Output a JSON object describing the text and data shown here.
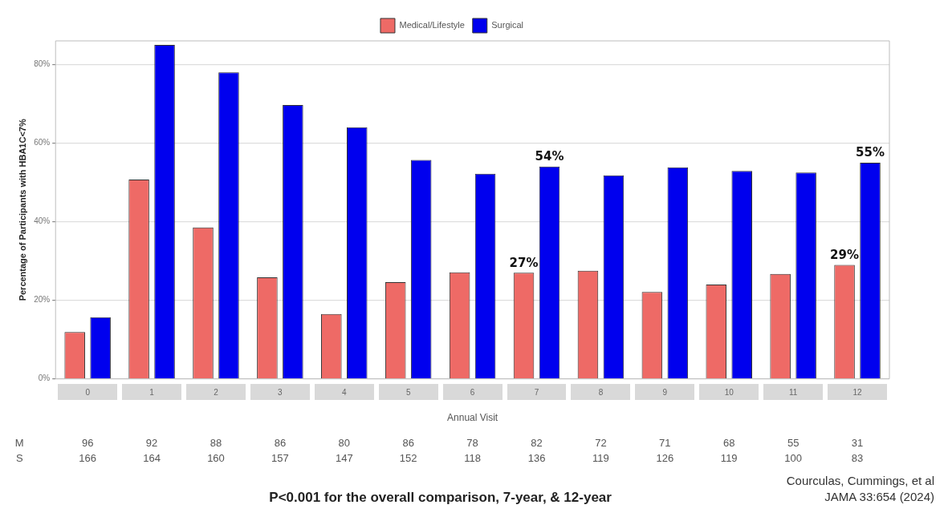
{
  "chart_data": {
    "type": "bar",
    "categories": [
      "0",
      "1",
      "2",
      "3",
      "4",
      "5",
      "6",
      "7",
      "8",
      "9",
      "10",
      "11",
      "12"
    ],
    "series": [
      {
        "name": "Medical/Lifestyle",
        "color": "#ee6a66",
        "values": [
          11.9,
          50.7,
          38.5,
          25.8,
          16.5,
          24.6,
          27.1,
          27,
          27.5,
          22.1,
          24.0,
          26.7,
          29
        ]
      },
      {
        "name": "Surgical",
        "color": "#0000ee",
        "values": [
          15.7,
          85.0,
          78.0,
          69.7,
          64.0,
          55.7,
          52.2,
          54,
          51.8,
          53.8,
          52.9,
          52.5,
          55
        ]
      }
    ],
    "xlabel": "Annual Visit",
    "ylabel": "Percentage of Participants with HBA1C<7%",
    "ylim": [
      0,
      86
    ],
    "yticks": [
      {
        "value": 0,
        "label": "0%"
      },
      {
        "value": 20,
        "label": "20%"
      },
      {
        "value": 40,
        "label": "40%"
      },
      {
        "value": 60,
        "label": "60%"
      },
      {
        "value": 80,
        "label": "80%"
      }
    ],
    "grid": "y",
    "legend": "top",
    "annotations": [
      {
        "text": "27%",
        "x": "7",
        "y": 27
      },
      {
        "text": "54%",
        "x": "7",
        "y": 54
      },
      {
        "text": "29%",
        "x": "12",
        "y": 29
      },
      {
        "text": "55%",
        "x": "12",
        "y": 55
      },
      "M 96 92 88 86 80 86 78 82 72 71 68 55 31",
      "S 166 164 160 157 147 152 118 136 119 126 119 100 83",
      "P<0.001 for the overall comparison, 7-year, & 12-year",
      "Courculas, Cummings, et al",
      "JAMA 33:654 (2024)"
    ]
  }
}
